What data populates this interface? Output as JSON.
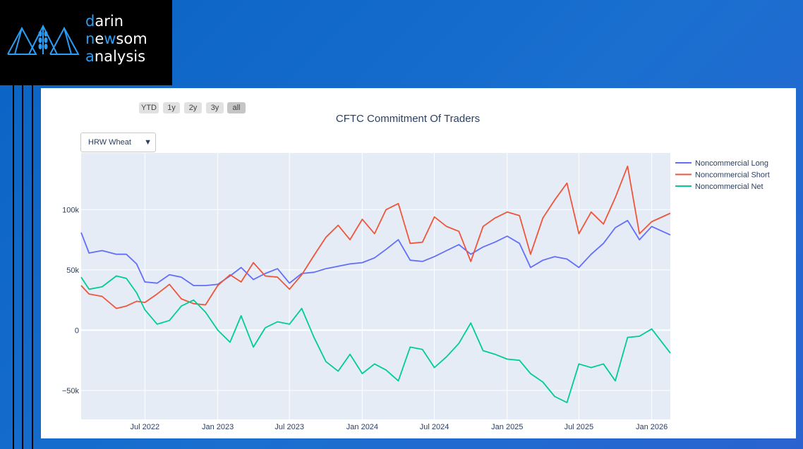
{
  "logo": {
    "line1_hl": "d",
    "line1_rest": "arin",
    "line2_hl1": "n",
    "line2_mid": "e",
    "line2_hl2": "w",
    "line2_rest": "som",
    "line3_hl": "a",
    "line3_rest": "nalysis",
    "icon": "mountain-wheat-icon"
  },
  "range_buttons": [
    "YTD",
    "1y",
    "2y",
    "3y",
    "all"
  ],
  "active_range": "all",
  "commodity_dropdown": {
    "selected": "HRW Wheat",
    "icon": "triangle-down-icon"
  },
  "colors": {
    "long": "#636efa",
    "short": "#ef553b",
    "net": "#00cc96",
    "plot_bg": "#e5ecf6",
    "grid": "#ffffff"
  },
  "chart_data": {
    "type": "line",
    "title": "CFTC Commitment Of Traders",
    "xlabel": "",
    "ylabel": "",
    "ylim": [
      -74000,
      147000
    ],
    "xlim": [
      "2022-01-21",
      "2026-02-17"
    ],
    "x_ticks": [
      {
        "date": "2022-07-01",
        "label": "Jul 2022"
      },
      {
        "date": "2023-01-01",
        "label": "Jan 2023"
      },
      {
        "date": "2023-07-01",
        "label": "Jul 2023"
      },
      {
        "date": "2024-01-01",
        "label": "Jan 2024"
      },
      {
        "date": "2024-07-01",
        "label": "Jul 2024"
      },
      {
        "date": "2025-01-01",
        "label": "Jan 2025"
      },
      {
        "date": "2025-07-01",
        "label": "Jul 2025"
      },
      {
        "date": "2026-01-01",
        "label": "Jan 2026"
      }
    ],
    "y_ticks": [
      {
        "value": -50000,
        "label": "−50k"
      },
      {
        "value": 0,
        "label": "0"
      },
      {
        "value": 50000,
        "label": "50k"
      },
      {
        "value": 100000,
        "label": "100k"
      }
    ],
    "grid": true,
    "legend_position": "right",
    "series": [
      {
        "name": "Noncommercial Long",
        "color": "#636efa",
        "x": [
          "2022-01-21",
          "2022-02-10",
          "2022-03-15",
          "2022-04-20",
          "2022-05-15",
          "2022-06-10",
          "2022-07-01",
          "2022-08-01",
          "2022-09-01",
          "2022-10-01",
          "2022-11-01",
          "2022-12-01",
          "2023-01-01",
          "2023-02-01",
          "2023-03-01",
          "2023-04-01",
          "2023-05-01",
          "2023-06-01",
          "2023-07-01",
          "2023-08-01",
          "2023-09-01",
          "2023-10-01",
          "2023-11-01",
          "2023-12-01",
          "2024-01-01",
          "2024-02-01",
          "2024-03-01",
          "2024-04-01",
          "2024-05-01",
          "2024-06-01",
          "2024-07-01",
          "2024-08-01",
          "2024-09-01",
          "2024-10-01",
          "2024-11-01",
          "2024-12-01",
          "2025-01-01",
          "2025-02-01",
          "2025-03-01",
          "2025-04-01",
          "2025-05-01",
          "2025-06-01",
          "2025-07-01",
          "2025-08-01",
          "2025-09-01",
          "2025-10-01",
          "2025-11-01",
          "2025-12-01",
          "2026-01-01",
          "2026-02-17"
        ],
        "values": [
          81000,
          64000,
          66000,
          63000,
          63000,
          55000,
          40000,
          39000,
          46000,
          44000,
          37000,
          37000,
          38000,
          45000,
          52000,
          42000,
          47000,
          51000,
          39000,
          47000,
          48000,
          51000,
          53000,
          55000,
          56000,
          60000,
          67000,
          75000,
          58000,
          57000,
          61000,
          66000,
          71000,
          63000,
          69000,
          73000,
          78000,
          72000,
          52000,
          58000,
          61000,
          59000,
          52000,
          63000,
          72000,
          85000,
          91000,
          75000,
          86000,
          79000
        ]
      },
      {
        "name": "Noncommercial Short",
        "color": "#ef553b",
        "x": [
          "2022-01-21",
          "2022-02-10",
          "2022-03-15",
          "2022-04-20",
          "2022-05-15",
          "2022-06-10",
          "2022-07-01",
          "2022-08-01",
          "2022-09-01",
          "2022-10-01",
          "2022-11-01",
          "2022-12-01",
          "2023-01-01",
          "2023-02-01",
          "2023-03-01",
          "2023-04-01",
          "2023-05-01",
          "2023-06-01",
          "2023-07-01",
          "2023-08-01",
          "2023-09-01",
          "2023-10-01",
          "2023-11-01",
          "2023-12-01",
          "2024-01-01",
          "2024-02-01",
          "2024-03-01",
          "2024-04-01",
          "2024-05-01",
          "2024-06-01",
          "2024-07-01",
          "2024-08-01",
          "2024-09-01",
          "2024-10-01",
          "2024-11-01",
          "2024-12-01",
          "2025-01-01",
          "2025-02-01",
          "2025-03-01",
          "2025-04-01",
          "2025-05-01",
          "2025-06-01",
          "2025-07-01",
          "2025-08-01",
          "2025-09-01",
          "2025-10-01",
          "2025-11-01",
          "2025-12-01",
          "2026-01-01",
          "2026-02-17"
        ],
        "values": [
          37000,
          30000,
          28000,
          18000,
          20000,
          24000,
          23000,
          30000,
          38000,
          26000,
          22000,
          21000,
          37000,
          46000,
          40000,
          56000,
          45000,
          44000,
          34000,
          46000,
          62000,
          77000,
          87000,
          75000,
          92000,
          80000,
          100000,
          105000,
          72000,
          73000,
          94000,
          86000,
          82000,
          57000,
          86000,
          93000,
          98000,
          95000,
          63000,
          93000,
          108000,
          122000,
          80000,
          98000,
          88000,
          110000,
          136000,
          80000,
          90000,
          97000
        ]
      },
      {
        "name": "Noncommercial Net",
        "color": "#00cc96",
        "x": [
          "2022-01-21",
          "2022-02-10",
          "2022-03-15",
          "2022-04-20",
          "2022-05-15",
          "2022-06-10",
          "2022-07-01",
          "2022-08-01",
          "2022-09-01",
          "2022-10-01",
          "2022-11-01",
          "2022-12-01",
          "2023-01-01",
          "2023-02-01",
          "2023-03-01",
          "2023-04-01",
          "2023-05-01",
          "2023-06-01",
          "2023-07-01",
          "2023-08-01",
          "2023-09-01",
          "2023-10-01",
          "2023-11-01",
          "2023-12-01",
          "2024-01-01",
          "2024-02-01",
          "2024-03-01",
          "2024-04-01",
          "2024-05-01",
          "2024-06-01",
          "2024-07-01",
          "2024-08-01",
          "2024-09-01",
          "2024-10-01",
          "2024-11-01",
          "2024-12-01",
          "2025-01-01",
          "2025-02-01",
          "2025-03-01",
          "2025-04-01",
          "2025-05-01",
          "2025-06-01",
          "2025-07-01",
          "2025-08-01",
          "2025-09-01",
          "2025-10-01",
          "2025-11-01",
          "2025-12-01",
          "2026-01-01",
          "2026-02-17"
        ],
        "values": [
          44000,
          34000,
          36000,
          45000,
          43000,
          31000,
          17000,
          5000,
          8000,
          20000,
          25000,
          15000,
          0,
          -10000,
          12000,
          -14000,
          2000,
          7000,
          5000,
          18000,
          -6000,
          -26000,
          -34000,
          -20000,
          -36000,
          -28000,
          -33000,
          -42000,
          -14000,
          -16000,
          -31000,
          -22000,
          -11000,
          6000,
          -17000,
          -20000,
          -24000,
          -25000,
          -36000,
          -43000,
          -55000,
          -60000,
          -28000,
          -31000,
          -28000,
          -42000,
          -6000,
          -5000,
          1000,
          -19000
        ]
      }
    ]
  }
}
